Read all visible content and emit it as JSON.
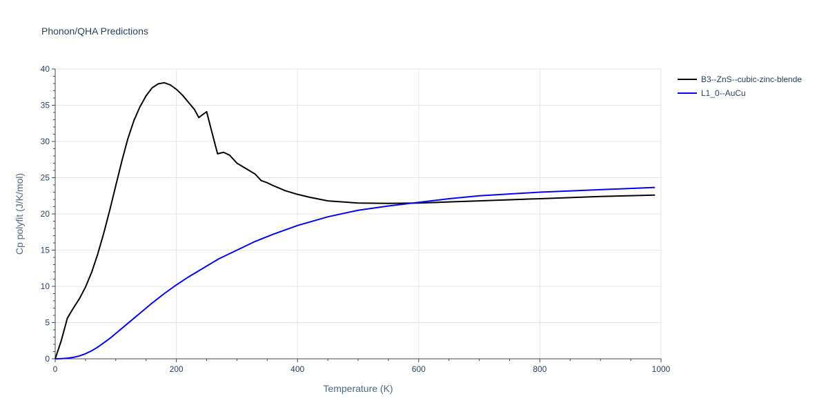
{
  "chart_data": {
    "type": "line",
    "title": "Phonon/QHA Predictions",
    "xlabel": "Temperature (K)",
    "ylabel": "Cp polyfit (J/K/mol)",
    "xlim": [
      0,
      1000
    ],
    "ylim": [
      0,
      40
    ],
    "xticks": [
      0,
      200,
      400,
      600,
      800,
      1000
    ],
    "yticks": [
      0,
      5,
      10,
      15,
      20,
      25,
      30,
      35,
      40
    ],
    "grid": true,
    "legend_position": "top-right",
    "series": [
      {
        "name": "B3--ZnS--cubic-zinc-blende",
        "color": "#000000",
        "x": [
          0,
          10,
          20,
          30,
          40,
          50,
          60,
          70,
          80,
          90,
          100,
          110,
          120,
          130,
          140,
          150,
          160,
          170,
          180,
          190,
          200,
          210,
          220,
          230,
          237,
          245,
          250,
          258,
          268,
          278,
          288,
          300,
          310,
          320,
          330,
          340,
          350,
          360,
          380,
          400,
          420,
          450,
          500,
          550,
          600,
          650,
          700,
          800,
          900,
          990
        ],
        "y": [
          0,
          2.5,
          5.6,
          7.0,
          8.3,
          9.9,
          11.9,
          14.4,
          17.3,
          20.5,
          23.9,
          27.3,
          30.4,
          32.9,
          34.8,
          36.3,
          37.4,
          37.95,
          38.1,
          37.8,
          37.2,
          36.4,
          35.4,
          34.4,
          33.3,
          33.8,
          34.1,
          31.5,
          28.3,
          28.5,
          28.1,
          27.0,
          26.5,
          26.0,
          25.5,
          24.6,
          24.3,
          23.9,
          23.2,
          22.7,
          22.3,
          21.8,
          21.5,
          21.45,
          21.5,
          21.65,
          21.8,
          22.1,
          22.4,
          22.6
        ]
      },
      {
        "name": "L1_0--AuCu",
        "color": "#0000ff",
        "x": [
          0,
          10,
          20,
          30,
          40,
          50,
          60,
          70,
          80,
          90,
          100,
          120,
          140,
          160,
          180,
          200,
          220,
          240,
          270,
          300,
          330,
          360,
          400,
          450,
          500,
          550,
          600,
          650,
          700,
          800,
          900,
          990
        ],
        "y": [
          0,
          0.02,
          0.08,
          0.2,
          0.4,
          0.7,
          1.1,
          1.6,
          2.2,
          2.8,
          3.5,
          4.9,
          6.3,
          7.7,
          9.0,
          10.2,
          11.3,
          12.3,
          13.8,
          15.0,
          16.2,
          17.2,
          18.4,
          19.6,
          20.5,
          21.1,
          21.6,
          22.1,
          22.5,
          23.0,
          23.35,
          23.65
        ]
      }
    ]
  }
}
